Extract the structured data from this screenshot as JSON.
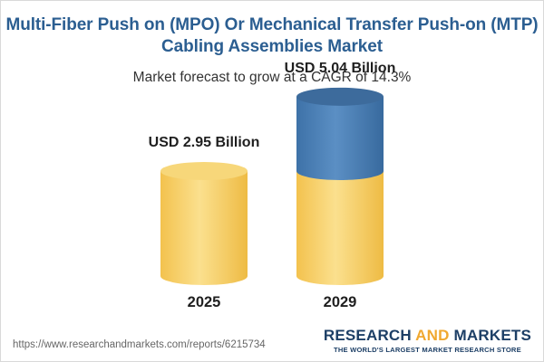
{
  "title_line1": "Multi-Fiber Push on (MPO) Or Mechanical Transfer Push-on (MTP)",
  "title_line2": "Cabling Assemblies Market",
  "subtitle": "Market forecast to grow at a CAGR of 14.3%",
  "source_url": "https://www.researchandmarkets.com/reports/6215734",
  "brand": {
    "part1": "RESEARCH ",
    "part2": "AND",
    "part3": " MARKETS",
    "tagline": "THE WORLD'S LARGEST MARKET RESEARCH STORE"
  },
  "colors": {
    "title": "#2b5e91",
    "base_cylinder": "#f5cc5e",
    "growth_cylinder": "#4a7fb5",
    "brand": "#1d3f66",
    "brand_accent": "#f0a830"
  },
  "chart_data": {
    "type": "bar",
    "categories": [
      "2025",
      "2029"
    ],
    "values": [
      2.95,
      5.04
    ],
    "value_labels": [
      "USD 2.95 Billion",
      "USD 5.04 Billion"
    ],
    "cagr": "14.3%"
  }
}
